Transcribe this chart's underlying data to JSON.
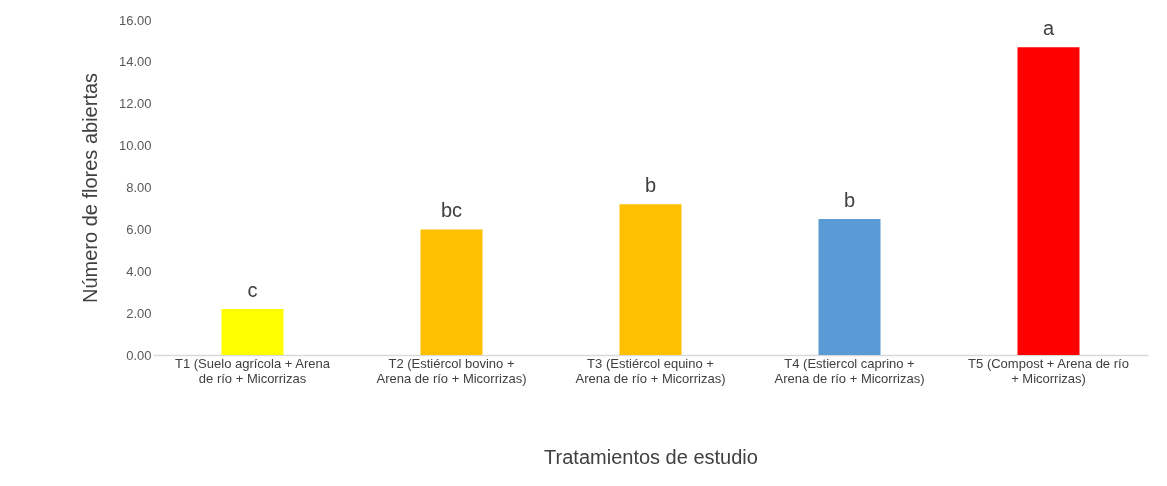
{
  "chart_data": {
    "type": "bar",
    "xlabel": "Tratamientos de estudio",
    "ylabel": "Número de flores abiertas",
    "categories": [
      "T1 (Suelo agrícola + Arena de río + Micorrizas",
      "T2 (Estiércol bovino + Arena de río + Micorrizas)",
      "T3 (Estiércol equino + Arena de río + Micorrizas)",
      "T4 (Estiercol caprino + Arena de río + Micorrizas)",
      "T5 (Compost + Arena de río + Micorrizas)"
    ],
    "values": [
      2.2,
      6.0,
      7.2,
      6.5,
      14.7
    ],
    "colors": [
      "#ffff00",
      "#ffc000",
      "#ffc000",
      "#5b9bd5",
      "#ff0000"
    ],
    "ylim": [
      0,
      16
    ],
    "yticks": [
      {
        "value": 0,
        "label": "0.00"
      },
      {
        "value": 2,
        "label": "2.00"
      },
      {
        "value": 4,
        "label": "4.00"
      },
      {
        "value": 6,
        "label": "6.00"
      },
      {
        "value": 8,
        "label": "8.00"
      },
      {
        "value": 10,
        "label": "10.00"
      },
      {
        "value": 12,
        "label": "12.00"
      },
      {
        "value": 14,
        "label": "14.00"
      },
      {
        "value": 16,
        "label": "16.00"
      }
    ],
    "grid": false,
    "annotations": [
      {
        "text": "c",
        "x": "T1 (Suelo agrícola + Arena de río + Micorrizas",
        "y": 2.2
      },
      {
        "text": "bc",
        "x": "T2 (Estiércol bovino + Arena de río + Micorrizas)",
        "y": 6.0
      },
      {
        "text": "b",
        "x": "T3 (Estiércol equino + Arena de río + Micorrizas)",
        "y": 7.2
      },
      {
        "text": "b",
        "x": "T4 (Estiercol caprino + Arena de río + Micorrizas)",
        "y": 6.5
      },
      {
        "text": "a",
        "x": "T5 (Compost + Arena de río + Micorrizas)",
        "y": 14.7
      }
    ]
  }
}
